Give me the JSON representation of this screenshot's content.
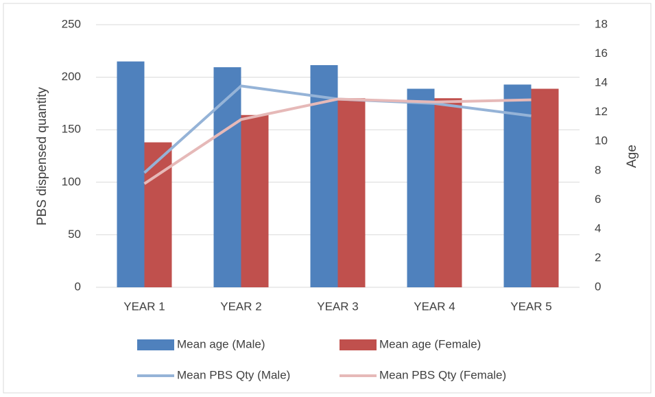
{
  "chart_data": {
    "type": "bar",
    "categories": [
      "YEAR 1",
      "YEAR 2",
      "YEAR 3",
      "YEAR 4",
      "YEAR 5"
    ],
    "y_label": "PBS dispensed quantity",
    "y2_label": "Age",
    "ylim": [
      0,
      250
    ],
    "yticks": [
      0,
      50,
      100,
      150,
      200,
      250
    ],
    "y2lim": [
      0,
      18
    ],
    "y2ticks": [
      0,
      2,
      4,
      6,
      8,
      10,
      12,
      14,
      16,
      18
    ],
    "grid": true,
    "series": [
      {
        "name": "Mean age (Male)",
        "type": "bar",
        "color": "#4f81bd",
        "values": [
          215,
          209.5,
          211.5,
          189,
          193
        ]
      },
      {
        "name": "Mean age (Female)",
        "type": "bar",
        "color": "#c0504d",
        "values": [
          138,
          164,
          180,
          180,
          189
        ]
      },
      {
        "name": "Mean PBS Qty (Male)",
        "type": "line",
        "axis": "y2",
        "color": "#95b3d7",
        "values": [
          7.85,
          13.8,
          12.9,
          12.6,
          11.75
        ]
      },
      {
        "name": "Mean PBS Qty (Female)",
        "type": "line",
        "axis": "y2",
        "color": "#e6b9b8",
        "values": [
          7.1,
          11.5,
          12.9,
          12.7,
          12.85
        ]
      }
    ]
  }
}
